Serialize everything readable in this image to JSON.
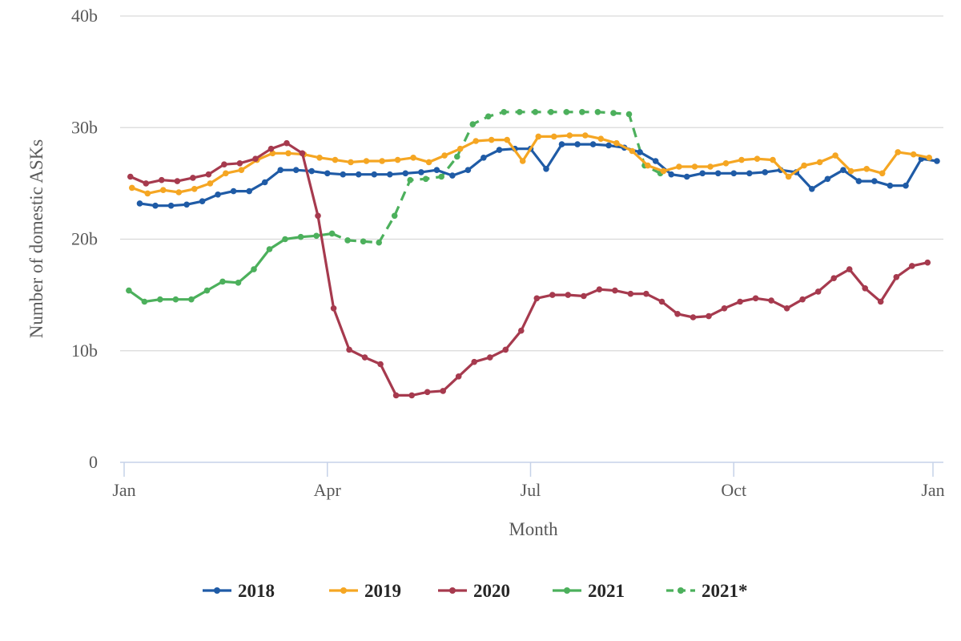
{
  "chart_data": {
    "type": "line",
    "xlabel": "Month",
    "ylabel": "Number of domestic ASKs",
    "x_ticks": [
      "Jan",
      "Apr",
      "Jul",
      "Oct",
      "Jan"
    ],
    "y_ticks": [
      "0",
      "10b",
      "20b",
      "30b",
      "40b"
    ],
    "ylim": [
      0,
      40
    ],
    "xlim_weeks": [
      0,
      52
    ],
    "grid": "horizontal",
    "legend_position": "bottom",
    "series": [
      {
        "name": "2018",
        "color": "#1f5ba6",
        "dashed": false,
        "x": [
          1,
          2,
          3,
          4,
          5,
          6,
          7,
          8,
          9,
          10,
          11,
          12,
          13,
          14,
          15,
          16,
          17,
          18,
          19,
          20,
          21,
          22,
          23,
          24,
          25,
          26,
          27,
          28,
          29,
          30,
          31,
          32,
          33,
          34,
          35,
          36,
          37,
          38,
          39,
          40,
          41,
          42,
          43,
          44,
          45,
          46,
          47,
          48,
          49,
          50,
          51,
          52
        ],
        "values": [
          23.2,
          23.0,
          23.0,
          23.1,
          23.4,
          24.0,
          24.3,
          24.3,
          25.1,
          26.2,
          26.2,
          26.1,
          25.9,
          25.8,
          25.8,
          25.8,
          25.8,
          25.9,
          26.0,
          26.2,
          25.7,
          26.2,
          27.3,
          28.0,
          28.1,
          28.1,
          26.3,
          28.5,
          28.5,
          28.5,
          28.4,
          28.2,
          27.8,
          27.0,
          25.8,
          25.6,
          25.9,
          25.9,
          25.9,
          25.9,
          26.0,
          26.2,
          26.0,
          24.5,
          25.4,
          26.2,
          25.2,
          25.2,
          24.8,
          24.8,
          27.2,
          27.0
        ]
      },
      {
        "name": "2019",
        "color": "#f5a623",
        "dashed": false,
        "x": [
          0.5,
          1.5,
          2.5,
          3.5,
          4.5,
          5.5,
          6.5,
          7.5,
          8.5,
          9.5,
          10.5,
          11.5,
          12.5,
          13.5,
          14.5,
          15.5,
          16.5,
          17.5,
          18.5,
          19.5,
          20.5,
          21.5,
          22.5,
          23.5,
          24.5,
          25.5,
          26.5,
          27.5,
          28.5,
          29.5,
          30.5,
          31.5,
          32.5,
          33.5,
          34.5,
          35.5,
          36.5,
          37.5,
          38.5,
          39.5,
          40.5,
          41.5,
          42.5,
          43.5,
          44.5,
          45.5,
          46.5,
          47.5,
          48.5,
          49.5,
          50.5,
          51.5
        ],
        "values": [
          24.6,
          24.1,
          24.4,
          24.2,
          24.5,
          25.0,
          25.9,
          26.2,
          27.1,
          27.7,
          27.7,
          27.6,
          27.3,
          27.1,
          26.9,
          27.0,
          27.0,
          27.1,
          27.3,
          26.9,
          27.5,
          28.1,
          28.8,
          28.9,
          28.9,
          27.0,
          29.2,
          29.2,
          29.3,
          29.3,
          29.0,
          28.6,
          27.9,
          26.6,
          26.1,
          26.5,
          26.5,
          26.5,
          26.8,
          27.1,
          27.2,
          27.1,
          25.6,
          26.6,
          26.9,
          27.5,
          26.1,
          26.3,
          25.9,
          27.8,
          27.6,
          27.3
        ]
      },
      {
        "name": "2020",
        "color": "#a63a4e",
        "dashed": false,
        "x": [
          0.4,
          1.4,
          2.4,
          3.4,
          4.4,
          5.4,
          6.4,
          7.4,
          8.4,
          9.4,
          10.4,
          11.4,
          12.4,
          13.4,
          14.4,
          15.4,
          16.4,
          17.4,
          18.4,
          19.4,
          20.4,
          21.4,
          22.4,
          23.4,
          24.4,
          25.4,
          26.4,
          27.4,
          28.4,
          29.4,
          30.4,
          31.4,
          32.4,
          33.4,
          34.4,
          35.4,
          36.4,
          37.4,
          38.4,
          39.4,
          40.4,
          41.4,
          42.4,
          43.4,
          44.4,
          45.4,
          46.4,
          47.4,
          48.4,
          49.4,
          50.4,
          51.4
        ],
        "values": [
          25.6,
          25.0,
          25.3,
          25.2,
          25.5,
          25.8,
          26.7,
          26.8,
          27.2,
          28.1,
          28.6,
          27.7,
          22.1,
          13.8,
          10.1,
          9.4,
          8.8,
          6.0,
          6.0,
          6.3,
          6.4,
          7.7,
          9.0,
          9.4,
          10.1,
          11.8,
          14.7,
          15.0,
          15.0,
          14.9,
          15.5,
          15.4,
          15.1,
          15.1,
          14.4,
          13.3,
          13.0,
          13.1,
          13.8,
          14.4,
          14.7,
          14.5,
          13.8,
          14.6,
          15.3,
          16.5,
          17.3,
          15.6,
          14.4,
          16.6,
          17.6,
          17.9
        ]
      },
      {
        "name": "2021",
        "color": "#4cb05c",
        "dashed": false,
        "x": [
          0.3,
          1.3,
          2.3,
          3.3,
          4.3,
          5.3,
          6.3,
          7.3,
          8.3,
          9.3,
          10.3,
          11.3,
          12.3,
          13.3
        ],
        "values": [
          15.4,
          14.4,
          14.6,
          14.6,
          14.6,
          15.4,
          16.2,
          16.1,
          17.3,
          19.1,
          20.0,
          20.2,
          20.3,
          20.5
        ]
      },
      {
        "name": "2021*",
        "color": "#4cb05c",
        "dashed": true,
        "x": [
          13.3,
          14.3,
          15.3,
          16.3,
          17.3,
          18.3,
          19.3,
          20.3,
          21.3,
          22.3,
          23.3,
          24.3,
          25.3,
          26.3,
          27.3,
          28.3,
          29.3,
          30.3,
          31.3,
          32.3,
          33.3,
          34.3
        ],
        "values": [
          20.5,
          19.9,
          19.8,
          19.7,
          22.1,
          25.3,
          25.4,
          25.6,
          27.4,
          30.3,
          31.0,
          31.4,
          31.4,
          31.4,
          31.4,
          31.4,
          31.4,
          31.4,
          31.3,
          31.2,
          26.6,
          25.9
        ]
      }
    ]
  }
}
